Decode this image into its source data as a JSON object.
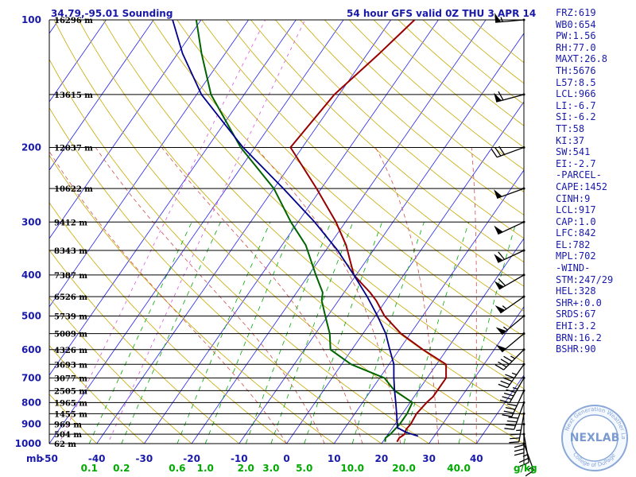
{
  "header": {
    "location": "34.79,-95.01 Sounding",
    "valid": "54 hour GFS valid 0Z THU  3 APR 14"
  },
  "indices": [
    "FRZ:619",
    "WB0:654",
    "PW:1.56",
    "RH:77.0",
    "MAXT:26.8",
    "TH:5676",
    "L57:8.5",
    "LCL:966",
    "LI:-6.7",
    "SI:-6.2",
    "TT:58",
    "KI:37",
    "SW:541",
    "EI:-2.7",
    "-PARCEL-",
    "CAPE:1452",
    "CINH:9",
    "LCL:917",
    "CAP:1.0",
    "LFC:842",
    "EL:782",
    "MPL:702",
    "-WIND-",
    "STM:247/29",
    "HEL:328",
    "SHR+:0.0",
    "SRDS:67",
    "EHI:3.2",
    "BRN:16.2",
    "BSHR:90"
  ],
  "logo": {
    "main": "NEXLAB",
    "ring_top": "Next Generation Weather Lab",
    "ring_bottom": "College of DuPage"
  },
  "colors": {
    "temperature": "#990000",
    "dewpoint": "#006400",
    "parcel": "#00008b",
    "isotherm": "#2222ee",
    "dry_adiabat": "#c8aa00",
    "moist_adiabat": "#d44e4e",
    "mixing_ratio": "#00aa00",
    "isohume_pink": "#dd55dd",
    "labels_green": "#00aa00",
    "index_text": "#1a1aaa"
  },
  "chart_data": {
    "type": "skew-t",
    "pressure_unit": "mb",
    "temperature_unit_label": "",
    "pressure_levels": [
      100,
      200,
      300,
      400,
      500,
      600,
      700,
      800,
      900,
      1000
    ],
    "pressure_tick_labels": [
      "100",
      "200",
      "300",
      "400",
      "500",
      "600",
      "700",
      "800",
      "900",
      "1000"
    ],
    "temperature_ticks": [
      -50,
      -40,
      -30,
      -20,
      -10,
      0,
      10,
      20,
      30,
      40
    ],
    "temperature_tick_labels": [
      "-50",
      "-40",
      "-30",
      "-20",
      "-10",
      "0",
      "10",
      "20",
      "30",
      "40"
    ],
    "temperature_range": [
      -50,
      50
    ],
    "mixing_ratio_labels": [
      "0.1",
      "0.2",
      "0.6",
      "1.0",
      "2.0",
      "3.0",
      "5.0",
      "10.0",
      "20.0",
      "40.0"
    ],
    "mixing_ratio_unit": "g/kg",
    "height_labels": [
      {
        "p": 100,
        "label": "16296 m"
      },
      {
        "p": 150,
        "label": "13615 m"
      },
      {
        "p": 200,
        "label": "12037 m"
      },
      {
        "p": 250,
        "label": "10622 m"
      },
      {
        "p": 300,
        "label": "9412 m"
      },
      {
        "p": 350,
        "label": "8343 m"
      },
      {
        "p": 400,
        "label": "7387 m"
      },
      {
        "p": 450,
        "label": "6526 m"
      },
      {
        "p": 500,
        "label": "5739 m"
      },
      {
        "p": 550,
        "label": "5009 m"
      },
      {
        "p": 600,
        "label": "4326 m"
      },
      {
        "p": 650,
        "label": "3693 m"
      },
      {
        "p": 700,
        "label": "3077 m"
      },
      {
        "p": 750,
        "label": "2505 m"
      },
      {
        "p": 800,
        "label": "1965 m"
      },
      {
        "p": 850,
        "label": "1455 m"
      },
      {
        "p": 900,
        "label": "969 m"
      },
      {
        "p": 950,
        "label": "504 m"
      },
      {
        "p": 1000,
        "label": "62 m"
      }
    ],
    "series": [
      {
        "key": "temperature",
        "color_key": "temperature",
        "points": [
          [
            990,
            23.0
          ],
          [
            970,
            22.9
          ],
          [
            950,
            23.5
          ],
          [
            925,
            23.1
          ],
          [
            900,
            23.3
          ],
          [
            850,
            23.0
          ],
          [
            800,
            23.5
          ],
          [
            775,
            24.0
          ],
          [
            750,
            24.0
          ],
          [
            700,
            24.0
          ],
          [
            650,
            22.0
          ],
          [
            600,
            15.0
          ],
          [
            550,
            8.0
          ],
          [
            500,
            2.0
          ],
          [
            460,
            -2.0
          ],
          [
            440,
            -4.5
          ],
          [
            400,
            -10.5
          ],
          [
            340,
            -16.5
          ],
          [
            300,
            -22.0
          ],
          [
            250,
            -31.0
          ],
          [
            200,
            -42.5
          ],
          [
            150,
            -41.0
          ],
          [
            120,
            -37.5
          ],
          [
            100,
            -35.0
          ]
        ]
      },
      {
        "key": "dewpoint",
        "color_key": "dewpoint",
        "points": [
          [
            990,
            20.5
          ],
          [
            970,
            20.0
          ],
          [
            950,
            20.5
          ],
          [
            900,
            21.0
          ],
          [
            850,
            21.0
          ],
          [
            800,
            20.5
          ],
          [
            750,
            15.0
          ],
          [
            700,
            11.0
          ],
          [
            650,
            2.0
          ],
          [
            600,
            -4.5
          ],
          [
            550,
            -7.0
          ],
          [
            500,
            -10.5
          ],
          [
            460,
            -13.5
          ],
          [
            440,
            -14.5
          ],
          [
            400,
            -18.5
          ],
          [
            340,
            -25.0
          ],
          [
            300,
            -31.5
          ],
          [
            250,
            -40.0
          ],
          [
            200,
            -53.0
          ],
          [
            150,
            -67.0
          ],
          [
            120,
            -75.0
          ],
          [
            100,
            -81.0
          ]
        ]
      },
      {
        "key": "parcel",
        "color_key": "parcel",
        "points": [
          [
            960,
            26.6
          ],
          [
            940,
            23.5
          ],
          [
            917,
            21.0
          ],
          [
            900,
            20.5
          ],
          [
            850,
            18.8
          ],
          [
            800,
            17.0
          ],
          [
            750,
            15.0
          ],
          [
            700,
            13.0
          ],
          [
            650,
            11.0
          ],
          [
            600,
            8.0
          ],
          [
            550,
            4.8
          ],
          [
            500,
            0.5
          ],
          [
            450,
            -4.5
          ],
          [
            400,
            -10.5
          ],
          [
            350,
            -17.5
          ],
          [
            300,
            -26.5
          ],
          [
            250,
            -38.0
          ],
          [
            200,
            -52.5
          ],
          [
            150,
            -69.0
          ],
          [
            120,
            -79.0
          ],
          [
            100,
            -86.0
          ]
        ]
      }
    ],
    "wind_barbs": [
      {
        "p": 100,
        "dir": 265,
        "kt": 55
      },
      {
        "p": 150,
        "dir": 255,
        "kt": 60
      },
      {
        "p": 200,
        "dir": 250,
        "kt": 30
      },
      {
        "p": 250,
        "dir": 250,
        "kt": 50
      },
      {
        "p": 300,
        "dir": 245,
        "kt": 50
      },
      {
        "p": 350,
        "dir": 245,
        "kt": 60
      },
      {
        "p": 400,
        "dir": 240,
        "kt": 60
      },
      {
        "p": 450,
        "dir": 235,
        "kt": 55
      },
      {
        "p": 500,
        "dir": 230,
        "kt": 55
      },
      {
        "p": 550,
        "dir": 230,
        "kt": 50
      },
      {
        "p": 600,
        "dir": 225,
        "kt": 45
      },
      {
        "p": 650,
        "dir": 215,
        "kt": 45
      },
      {
        "p": 700,
        "dir": 210,
        "kt": 45
      },
      {
        "p": 750,
        "dir": 205,
        "kt": 40
      },
      {
        "p": 800,
        "dir": 200,
        "kt": 40
      },
      {
        "p": 850,
        "dir": 190,
        "kt": 35
      },
      {
        "p": 900,
        "dir": 180,
        "kt": 30
      },
      {
        "p": 950,
        "dir": 170,
        "kt": 25
      },
      {
        "p": 1000,
        "dir": 160,
        "kt": 15
      }
    ]
  }
}
